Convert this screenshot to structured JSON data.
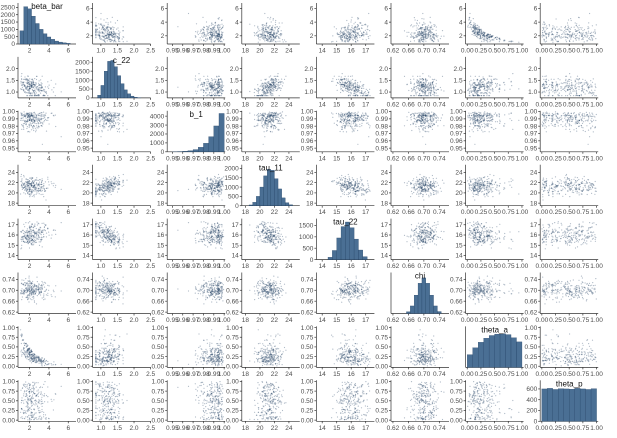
{
  "colors": {
    "points": "#1b3a5c",
    "bar_fill": "#4a6f94",
    "bar_stroke": "#1f3f63"
  },
  "chart_data": {
    "type": "scatter",
    "variables": [
      "beta_bar",
      "c_22",
      "b_1",
      "tau_11",
      "tau_22",
      "chi",
      "theta_a",
      "theta_p"
    ],
    "diagonal_type": "bar",
    "axes": [
      {
        "name": "beta_bar",
        "xlim": [
          0.8,
          6.8
        ],
        "xticks": [
          "2",
          "4",
          "6"
        ],
        "xtick_values": [
          2,
          4,
          6
        ],
        "yticks": [
          "2",
          "4",
          "6"
        ],
        "ytick_values": [
          2,
          4,
          6
        ]
      },
      {
        "name": "c_22",
        "xlim": [
          0.75,
          2.5
        ],
        "xticks": [
          "1.0",
          "1.5",
          "2.0",
          "2.5"
        ],
        "xtick_values": [
          1.0,
          1.5,
          2.0,
          2.5
        ],
        "yticks": [
          "1.0",
          "1.5",
          "2.0"
        ],
        "ytick_values": [
          1.0,
          1.5,
          2.0
        ]
      },
      {
        "name": "b_1",
        "xlim": [
          0.945,
          1.001
        ],
        "xticks": [
          "0.95",
          "0.96",
          "0.97",
          "0.98",
          "0.99",
          "1.00"
        ],
        "xtick_values": [
          0.95,
          0.96,
          0.97,
          0.98,
          0.99,
          1.0
        ],
        "yticks": [
          "0.95",
          "0.96",
          "0.97",
          "0.98",
          "0.99",
          "1.00"
        ],
        "ytick_values": [
          0.95,
          0.96,
          0.97,
          0.98,
          0.99,
          1.0
        ]
      },
      {
        "name": "tau_11",
        "xlim": [
          17.5,
          25.5
        ],
        "xticks": [
          "18",
          "20",
          "22",
          "24"
        ],
        "xtick_values": [
          18,
          20,
          22,
          24
        ],
        "yticks": [
          "18",
          "20",
          "22",
          "24"
        ],
        "ytick_values": [
          18,
          20,
          22,
          24
        ]
      },
      {
        "name": "tau_22",
        "xlim": [
          13.6,
          17.6
        ],
        "xticks": [
          "14",
          "15",
          "16",
          "17"
        ],
        "xtick_values": [
          14,
          15,
          16,
          17
        ],
        "yticks": [
          "14",
          "15",
          "16",
          "17"
        ],
        "ytick_values": [
          14,
          15,
          16,
          17
        ]
      },
      {
        "name": "chi",
        "xlim": [
          0.615,
          0.765
        ],
        "xticks": [
          "0.62",
          "0.66",
          "0.70",
          "0.74"
        ],
        "xtick_values": [
          0.62,
          0.66,
          0.7,
          0.74
        ],
        "yticks": [
          "0.62",
          "0.66",
          "0.70",
          "0.74"
        ],
        "ytick_values": [
          0.62,
          0.66,
          0.7,
          0.74
        ]
      },
      {
        "name": "theta_a",
        "xlim": [
          -0.03,
          1.03
        ],
        "xticks": [
          "0.00",
          "0.25",
          "0.50",
          "0.75",
          "1.00"
        ],
        "xtick_values": [
          0,
          0.25,
          0.5,
          0.75,
          1.0
        ],
        "yticks": [
          "0.00",
          "0.25",
          "0.50",
          "0.75",
          "1.00"
        ],
        "ytick_values": [
          0,
          0.25,
          0.5,
          0.75,
          1.0
        ]
      },
      {
        "name": "theta_p",
        "xlim": [
          -0.03,
          1.03
        ],
        "xticks": [
          "0.00",
          "0.25",
          "0.50",
          "0.75",
          "1.00"
        ],
        "xtick_values": [
          0,
          0.25,
          0.5,
          0.75,
          1.0
        ],
        "yticks": [
          "0.00",
          "0.25",
          "0.50",
          "0.75",
          "1.00"
        ],
        "ytick_values": [
          0,
          0.25,
          0.5,
          0.75,
          1.0
        ]
      }
    ],
    "marginals": [
      {
        "name": "beta_bar",
        "yticks": [
          "0",
          "500",
          "1000",
          "1500",
          "2000",
          "2500"
        ],
        "ytick_values": [
          0,
          500,
          1000,
          1500,
          2000,
          2500
        ],
        "ymax": 2800,
        "bin_edges": [
          1.0,
          1.4,
          1.8,
          2.2,
          2.6,
          3.0,
          3.4,
          3.8,
          4.2,
          4.6,
          5.0,
          5.4,
          5.8,
          6.2
        ],
        "counts": [
          900,
          2550,
          2400,
          1900,
          1400,
          1000,
          700,
          480,
          320,
          200,
          130,
          80,
          45
        ]
      },
      {
        "name": "c_22",
        "yticks": [
          "0",
          "500",
          "1000",
          "1500",
          "2000"
        ],
        "ytick_values": [
          0,
          500,
          1000,
          1500,
          2000
        ],
        "ymax": 2300,
        "bin_edges": [
          0.9,
          1.0,
          1.1,
          1.2,
          1.3,
          1.4,
          1.5,
          1.6,
          1.7,
          1.8,
          1.9,
          2.0,
          2.1,
          2.2
        ],
        "counts": [
          150,
          700,
          1500,
          2050,
          2100,
          1750,
          1250,
          800,
          450,
          230,
          100,
          40,
          15
        ]
      },
      {
        "name": "b_1",
        "yticks": [
          "0",
          "1000",
          "2000",
          "3000",
          "4000"
        ],
        "ytick_values": [
          0,
          1000,
          2000,
          3000,
          4000
        ],
        "ymax": 4600,
        "bin_edges": [
          0.95,
          0.955,
          0.96,
          0.965,
          0.97,
          0.975,
          0.98,
          0.985,
          0.99,
          0.995,
          1.0
        ],
        "counts": [
          15,
          30,
          60,
          120,
          250,
          500,
          950,
          1700,
          2900,
          4300
        ]
      },
      {
        "name": "tau_11",
        "yticks": [
          "0",
          "500",
          "1000",
          "1500",
          "2000"
        ],
        "ytick_values": [
          0,
          500,
          1000,
          1500,
          2000
        ],
        "ymax": 2200,
        "bin_edges": [
          18.5,
          19.0,
          19.5,
          20.0,
          20.5,
          21.0,
          21.5,
          22.0,
          22.5,
          23.0,
          23.5,
          24.0,
          24.5
        ],
        "counts": [
          40,
          180,
          500,
          1000,
          1600,
          1950,
          1900,
          1450,
          900,
          420,
          160,
          50
        ]
      },
      {
        "name": "tau_22",
        "yticks": [
          "0",
          "500",
          "1000",
          "1500"
        ],
        "ytick_values": [
          0,
          500,
          1000,
          1500
        ],
        "ymax": 1800,
        "bin_edges": [
          14.4,
          14.7,
          15.0,
          15.3,
          15.6,
          15.9,
          16.2,
          16.5,
          16.8,
          17.1
        ],
        "counts": [
          100,
          400,
          950,
          1450,
          1650,
          1400,
          900,
          420,
          130
        ]
      },
      {
        "name": "chi",
        "yticks": [],
        "ytick_values": [],
        "ymax": 1900,
        "bin_edges": [
          0.655,
          0.665,
          0.675,
          0.685,
          0.695,
          0.705,
          0.715,
          0.725,
          0.735,
          0.745
        ],
        "counts": [
          80,
          350,
          850,
          1400,
          1650,
          1400,
          850,
          350,
          90
        ]
      },
      {
        "name": "theta_a",
        "yticks": [],
        "ytick_values": [],
        "ymax": 900,
        "bin_edges": [
          0.0,
          0.1,
          0.2,
          0.3,
          0.4,
          0.5,
          0.6,
          0.7,
          0.8,
          0.9,
          1.0
        ],
        "counts": [
          280,
          430,
          550,
          640,
          700,
          730,
          740,
          720,
          650,
          560
        ]
      },
      {
        "name": "theta_p",
        "yticks": [
          "0",
          "200",
          "400",
          "600"
        ],
        "ytick_values": [
          0,
          200,
          400,
          600
        ],
        "ymax": 760,
        "bin_edges": [
          0.0,
          0.1,
          0.2,
          0.3,
          0.4,
          0.5,
          0.6,
          0.7,
          0.8,
          0.9,
          1.0
        ],
        "counts": [
          600,
          610,
          590,
          605,
          600,
          595,
          610,
          600,
          590,
          605
        ]
      }
    ],
    "scatter_relations": [
      {
        "x": "beta_bar",
        "y": "c_22",
        "shape": "decreasing curve"
      },
      {
        "x": "beta_bar",
        "y": "theta_a",
        "shape": "strong decreasing curve"
      },
      {
        "x": "c_22",
        "y": "tau_11",
        "shape": "positive correlation"
      },
      {
        "x": "c_22",
        "y": "tau_22",
        "shape": "negative correlation"
      },
      {
        "x": "c_22",
        "y": "theta_a",
        "shape": "uniform band"
      }
    ],
    "grid": false,
    "legend": "none"
  }
}
